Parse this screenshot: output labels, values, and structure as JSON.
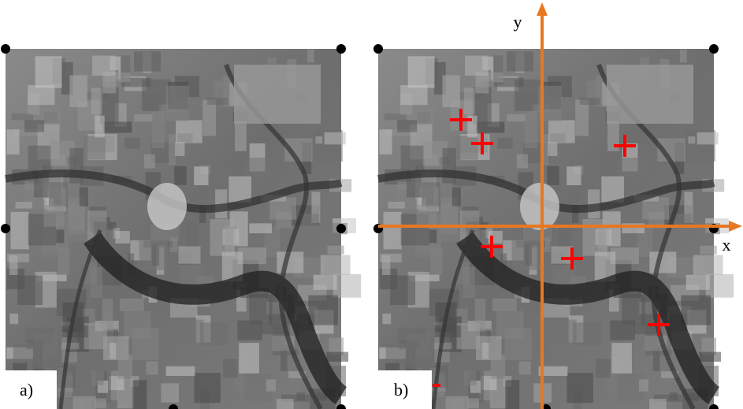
{
  "panels": [
    {
      "label": "a)"
    },
    {
      "label": "b)",
      "axes": {
        "x": "x",
        "y": "y"
      }
    }
  ]
}
